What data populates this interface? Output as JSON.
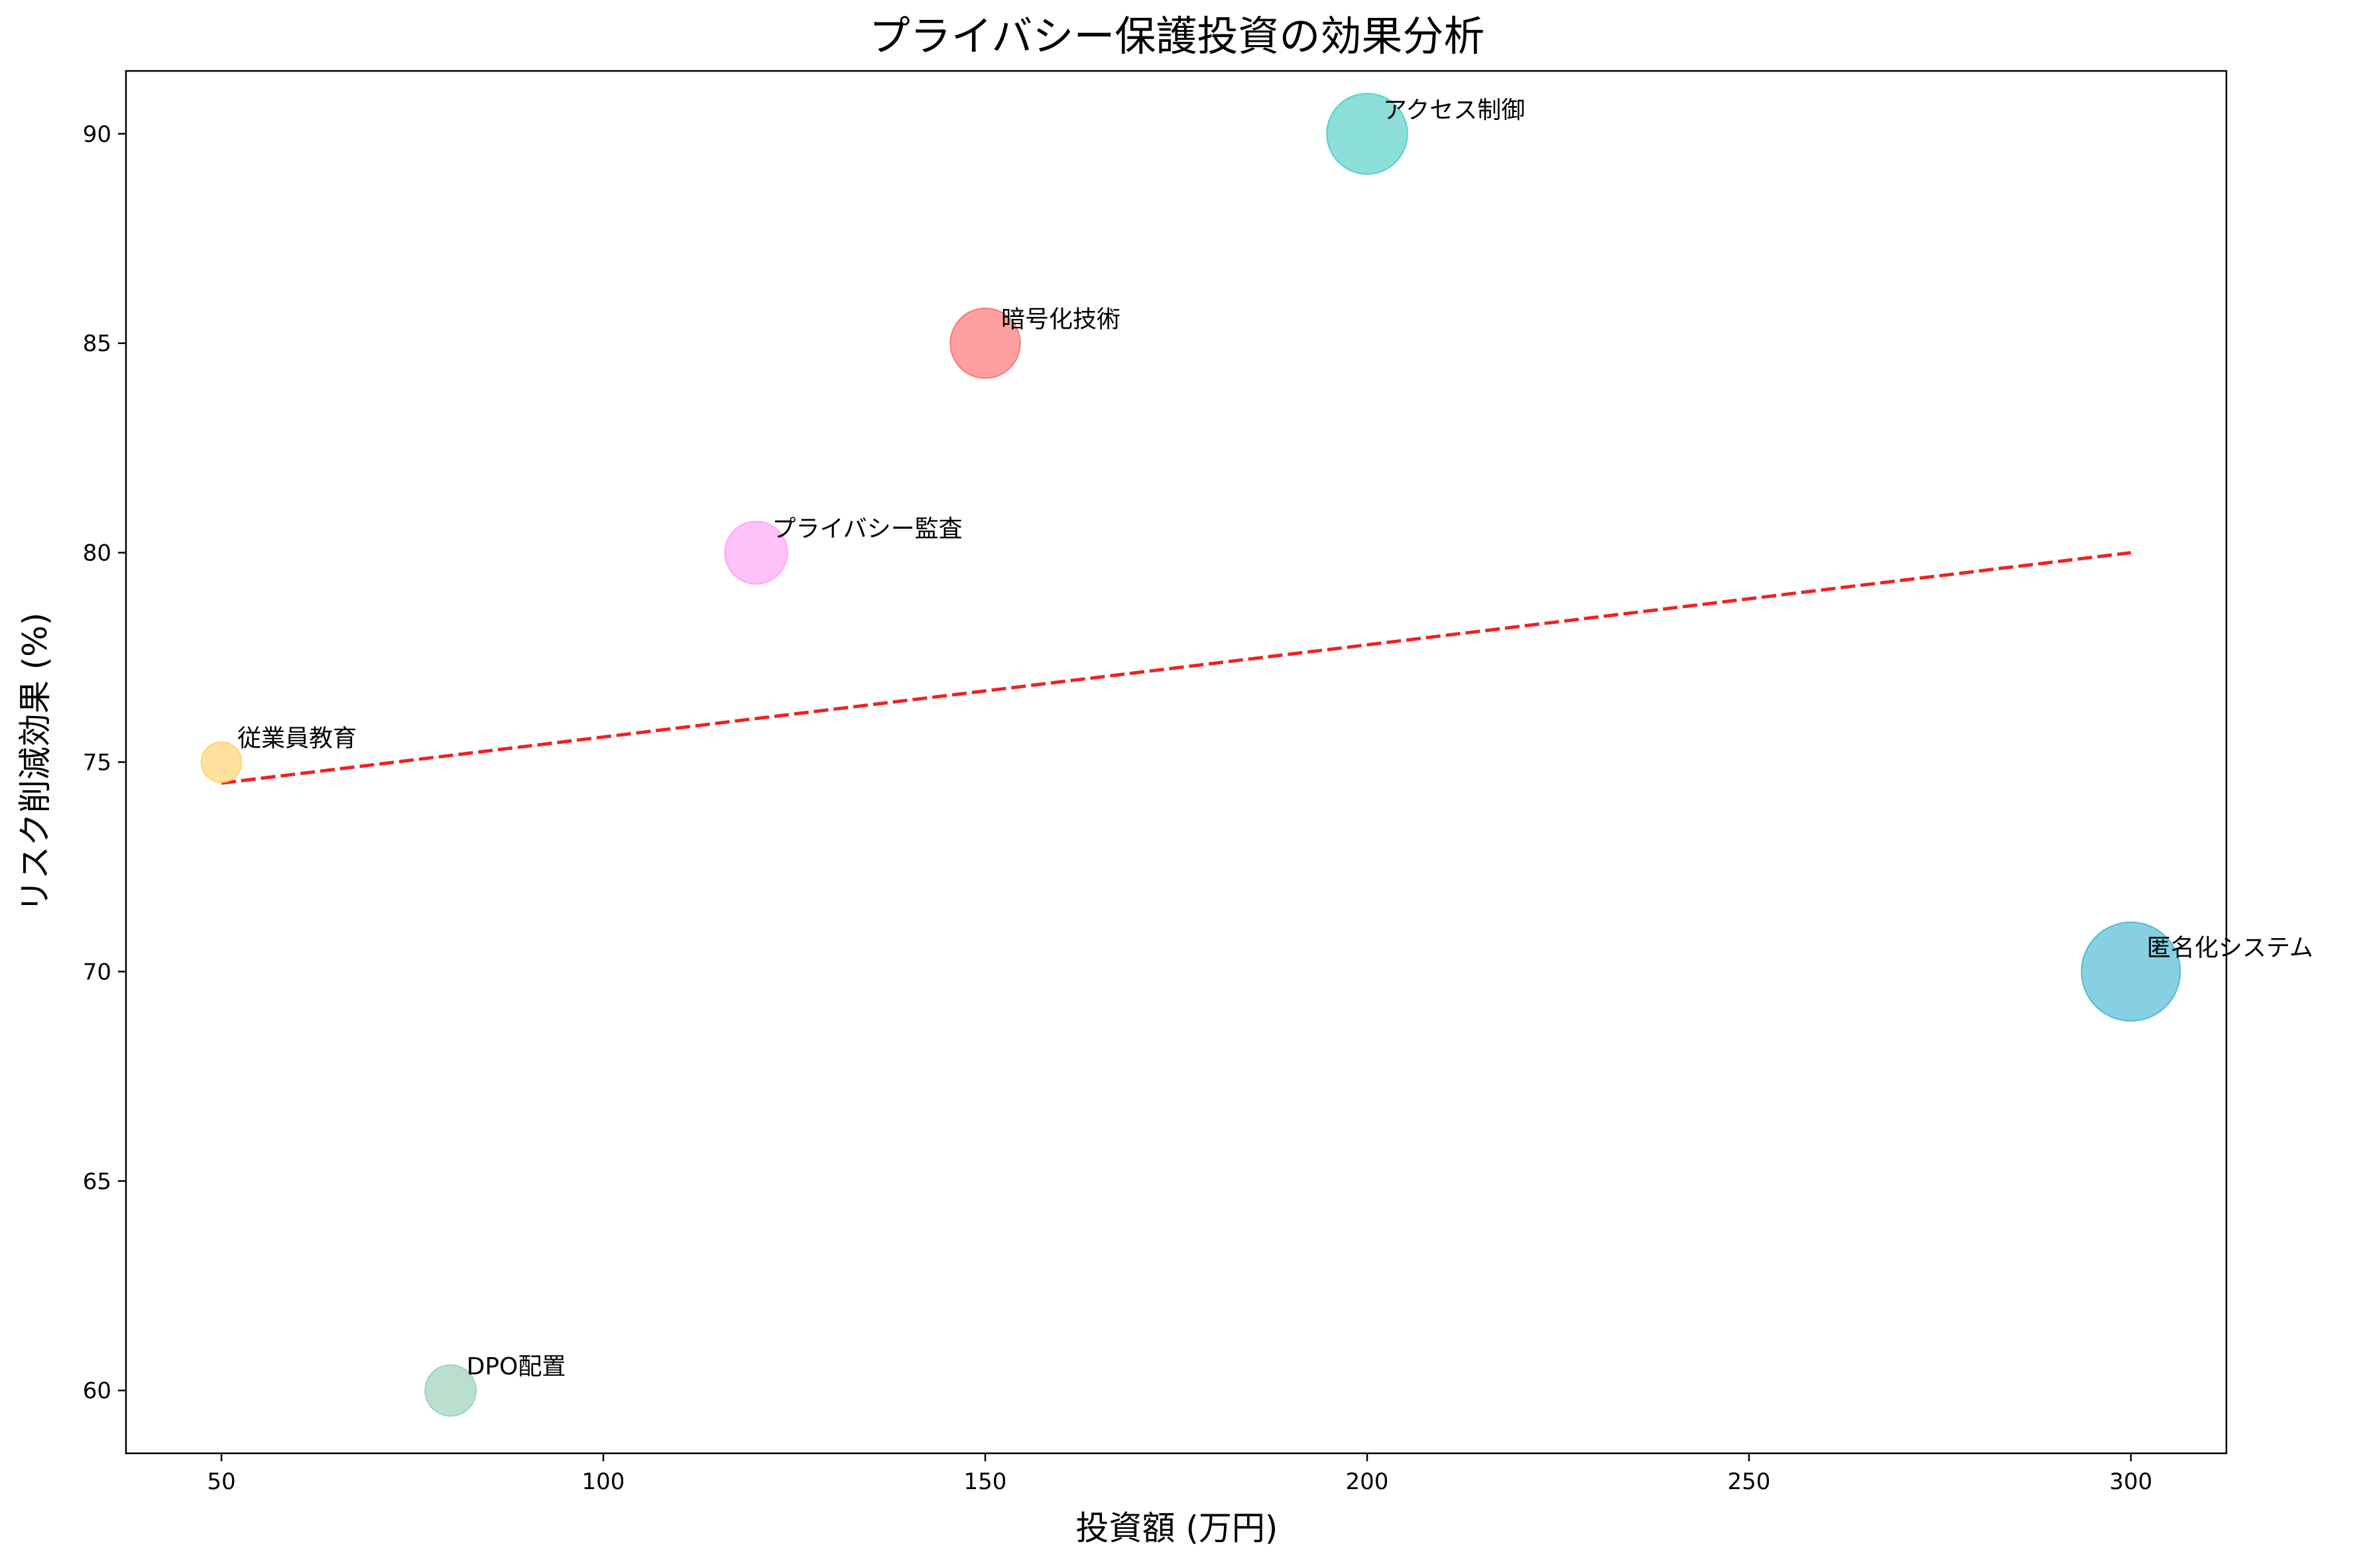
{
  "chart_data": {
    "type": "scatter",
    "title": "プライバシー保護投資の効果分析",
    "xlabel": "投資額 (万円)",
    "ylabel": "リスク削減効果 (%)",
    "xlim": [
      37.5,
      312.5
    ],
    "ylim": [
      58.5,
      91.5
    ],
    "xticks": [
      50,
      100,
      150,
      200,
      250,
      300
    ],
    "yticks": [
      60,
      65,
      70,
      75,
      80,
      85,
      90
    ],
    "grid": false,
    "points": [
      {
        "label": "暗号化技術",
        "x": 150,
        "y": 85,
        "color": "#FF6B6B",
        "size": 150
      },
      {
        "label": "アクセス制御",
        "x": 200,
        "y": 90,
        "color": "#4ECDC4",
        "size": 200
      },
      {
        "label": "匿名化システム",
        "x": 300,
        "y": 70,
        "color": "#45B7D1",
        "size": 300
      },
      {
        "label": "DPO配置",
        "x": 80,
        "y": 60,
        "color": "#96CEB4",
        "size": 80
      },
      {
        "label": "従業員教育",
        "x": 50,
        "y": 75,
        "color": "#FFD166",
        "size": 50
      },
      {
        "label": "プライバシー監査",
        "x": 120,
        "y": 80,
        "color": "#FF9FF3",
        "size": 120
      }
    ],
    "trendline": {
      "style": "dashed",
      "color": "#EE2222",
      "x": [
        50,
        300
      ],
      "y": [
        74.5,
        80.0
      ]
    }
  }
}
